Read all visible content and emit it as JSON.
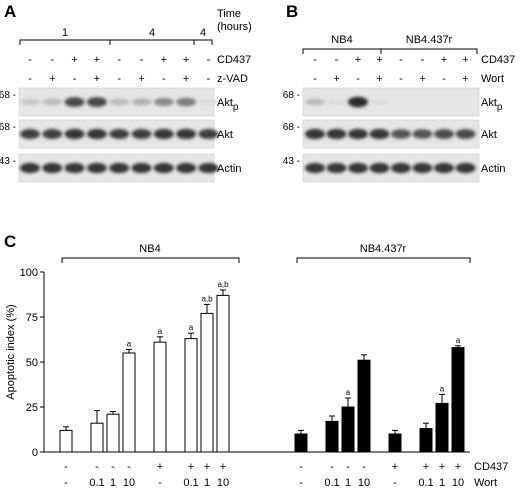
{
  "panels": {
    "A": {
      "letter": "A",
      "time_header": "Time",
      "time_unit": "(hours)",
      "time_groups": [
        "1",
        "4",
        "4"
      ],
      "row_labels": [
        "CD437",
        "z-VAD"
      ],
      "cd437": [
        "-",
        "-",
        "+",
        "+",
        "-",
        "-",
        "+",
        "+",
        "-"
      ],
      "zvad": [
        "-",
        "+",
        "-",
        "+",
        "-",
        "+",
        "-",
        "+",
        "-"
      ],
      "blots": [
        {
          "label": "Aktp",
          "label_main": "Akt",
          "label_sub": "p",
          "marker": "68",
          "intensity": [
            0.15,
            0.2,
            0.75,
            0.75,
            0.2,
            0.25,
            0.45,
            0.5,
            0.05
          ]
        },
        {
          "label": "Akt",
          "marker": "68",
          "intensity": [
            0.8,
            0.8,
            0.85,
            0.85,
            0.8,
            0.8,
            0.85,
            0.85,
            0.8
          ]
        },
        {
          "label": "Actin",
          "marker": "43",
          "intensity": [
            0.85,
            0.85,
            0.85,
            0.85,
            0.85,
            0.85,
            0.85,
            0.85,
            0.85
          ]
        }
      ]
    },
    "B": {
      "letter": "B",
      "groups": [
        "NB4",
        "NB4.437r"
      ],
      "row_labels": [
        "CD437",
        "Wort"
      ],
      "cd437": [
        "-",
        "-",
        "+",
        "+",
        "-",
        "-",
        "+",
        "+"
      ],
      "wort": [
        "-",
        "+",
        "-",
        "+",
        "-",
        "+",
        "-",
        "+"
      ],
      "blots": [
        {
          "label": "Aktp",
          "label_main": "Akt",
          "label_sub": "p",
          "marker": "68",
          "intensity": [
            0.2,
            0.05,
            0.9,
            0.05,
            0.0,
            0.0,
            0.0,
            0.0
          ]
        },
        {
          "label": "Akt",
          "marker": "68",
          "intensity": [
            0.85,
            0.85,
            0.85,
            0.85,
            0.7,
            0.7,
            0.75,
            0.75
          ]
        },
        {
          "label": "Actin",
          "marker": "43",
          "intensity": [
            0.85,
            0.85,
            0.85,
            0.85,
            0.85,
            0.85,
            0.85,
            0.85
          ]
        }
      ]
    },
    "C": {
      "letter": "C",
      "row_labels": [
        "CD437",
        "Wort"
      ]
    }
  },
  "chart_data": {
    "type": "bar",
    "ylabel": "Apoptotic index (%)",
    "ylim": [
      0,
      100
    ],
    "yticks": [
      "0",
      "25",
      "50",
      "75",
      "100"
    ],
    "groups": [
      {
        "name": "NB4",
        "fill": "#ffffff",
        "bars": [
          {
            "value": 12,
            "err": 2,
            "cd437": "-",
            "wort": "-",
            "ann": ""
          },
          {
            "value": 16,
            "err": 7,
            "cd437": "-",
            "wort": "0.1",
            "ann": ""
          },
          {
            "value": 21,
            "err": 1.5,
            "cd437": "-",
            "wort": "1",
            "ann": ""
          },
          {
            "value": 55,
            "err": 2,
            "cd437": "-",
            "wort": "10",
            "ann": "a"
          },
          {
            "value": 61,
            "err": 3,
            "cd437": "+",
            "wort": "-",
            "ann": "a"
          },
          {
            "value": 63,
            "err": 3,
            "cd437": "+",
            "wort": "0.1",
            "ann": "a"
          },
          {
            "value": 77,
            "err": 5,
            "cd437": "+",
            "wort": "1",
            "ann": "a,b"
          },
          {
            "value": 87,
            "err": 3,
            "cd437": "+",
            "wort": "10",
            "ann": "a,b"
          }
        ]
      },
      {
        "name": "NB4.437r",
        "fill": "#000000",
        "bars": [
          {
            "value": 10,
            "err": 2,
            "cd437": "-",
            "wort": "-",
            "ann": ""
          },
          {
            "value": 17,
            "err": 3,
            "cd437": "-",
            "wort": "0.1",
            "ann": ""
          },
          {
            "value": 25,
            "err": 5,
            "cd437": "-",
            "wort": "1",
            "ann": "a"
          },
          {
            "value": 51,
            "err": 3,
            "cd437": "-",
            "wort": "10",
            "ann": ""
          },
          {
            "value": 10,
            "err": 2,
            "cd437": "+",
            "wort": "-",
            "ann": ""
          },
          {
            "value": 13,
            "err": 3,
            "cd437": "+",
            "wort": "0.1",
            "ann": ""
          },
          {
            "value": 27,
            "err": 5,
            "cd437": "+",
            "wort": "1",
            "ann": "a"
          },
          {
            "value": 58,
            "err": 1,
            "cd437": "+",
            "wort": "10",
            "ann": "a"
          }
        ]
      }
    ]
  }
}
